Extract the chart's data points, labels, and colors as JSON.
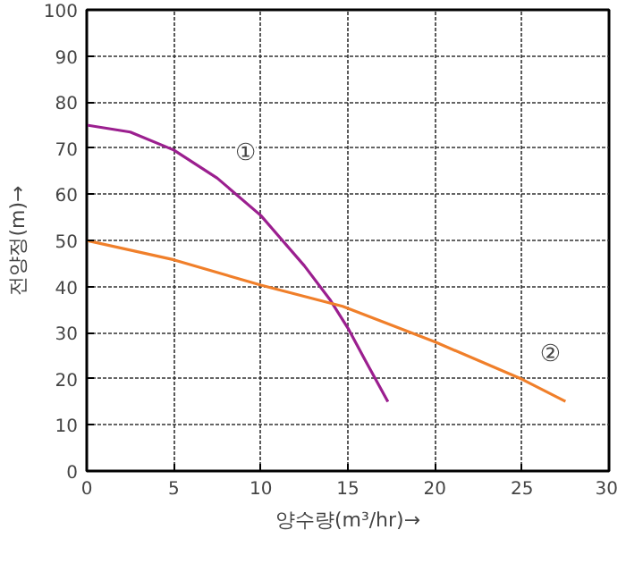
{
  "chart_data": {
    "type": "line",
    "xlabel": "양수량(m³/hr)→",
    "ylabel": "전양정(m)→",
    "xlim": [
      0,
      30
    ],
    "ylim": [
      0,
      100
    ],
    "xticks": [
      0,
      5,
      10,
      15,
      20,
      25,
      30
    ],
    "yticks": [
      0,
      10,
      20,
      30,
      40,
      50,
      60,
      70,
      80,
      90,
      100
    ],
    "grid": true,
    "marker": "none",
    "line_style": "solid",
    "series": [
      {
        "name": "①",
        "color": "#9b1f8f",
        "x": [
          0,
          2.5,
          5,
          7.5,
          10,
          12.5,
          14,
          15,
          16,
          17.3
        ],
        "values": [
          75,
          73.5,
          69.6,
          63.5,
          55.4,
          44.5,
          37,
          31,
          24,
          15
        ]
      },
      {
        "name": "②",
        "color": "#f07f2a",
        "x": [
          0,
          5,
          10,
          14.7,
          20,
          25,
          27.5
        ],
        "values": [
          50,
          45.8,
          40.3,
          35.7,
          28,
          19.9,
          15.1
        ]
      }
    ]
  }
}
